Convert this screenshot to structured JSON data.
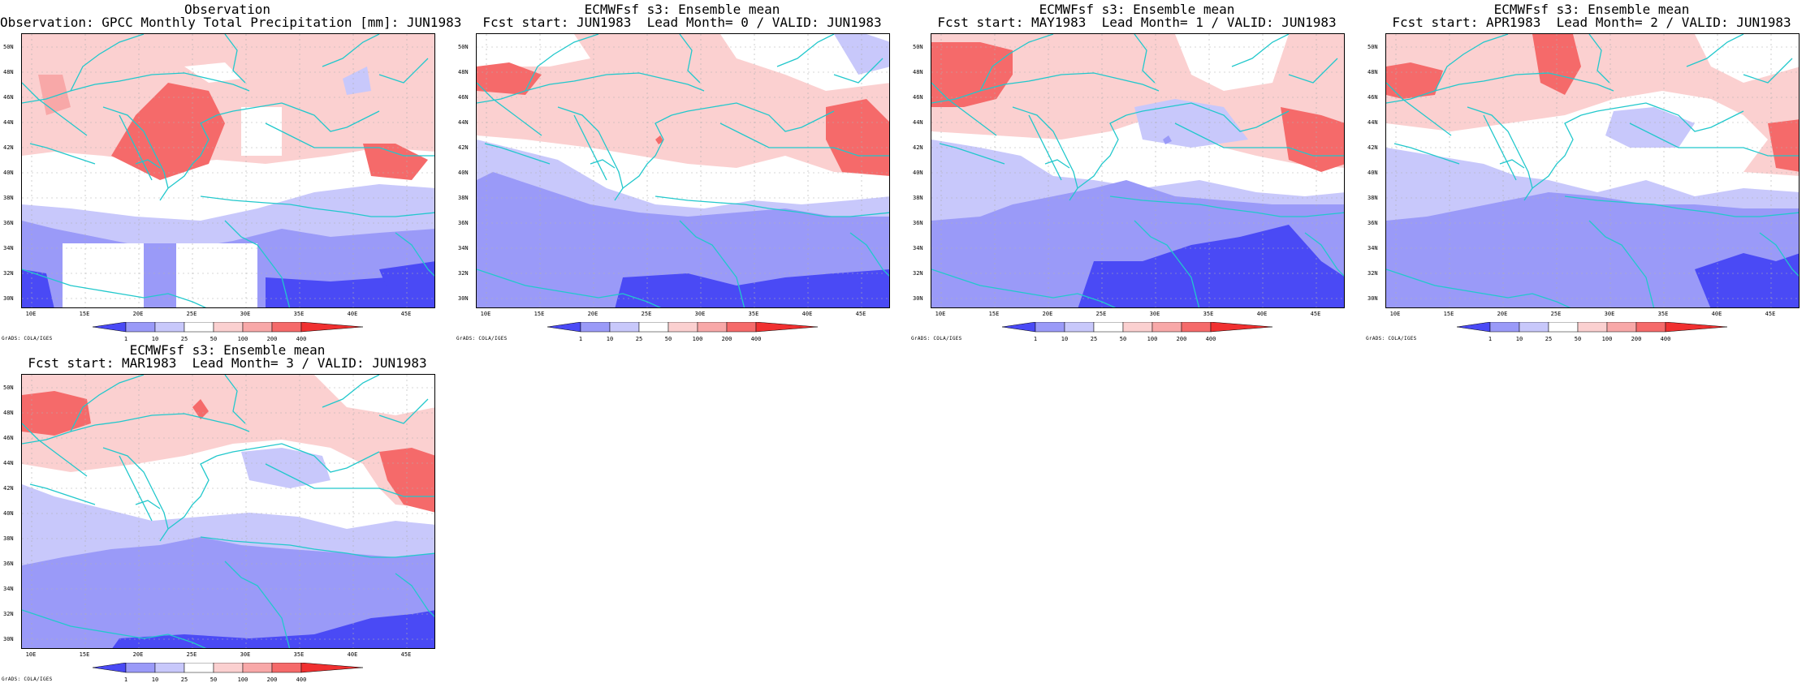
{
  "axis": {
    "lat_labels": [
      "50N",
      "48N",
      "46N",
      "44N",
      "42N",
      "40N",
      "38N",
      "36N",
      "34N",
      "32N",
      "30N"
    ],
    "lon_labels": [
      "10E",
      "15E",
      "20E",
      "25E",
      "30E",
      "35E",
      "40E",
      "45E"
    ]
  },
  "colorbar": {
    "levels": [
      "1",
      "10",
      "25",
      "50",
      "100",
      "200",
      "400"
    ],
    "colors": [
      "#4a4af5",
      "#9a9af8",
      "#c8c8fb",
      "#ffffff",
      "#fbd0d0",
      "#f8a8a8",
      "#f56a6a",
      "#f03030"
    ]
  },
  "credit": "GrADS: COLA/IGES",
  "coast_color": "#22c8cc",
  "panels": [
    {
      "id": "obs",
      "title1": "Observation",
      "title2": "Observation: GPCC Monthly Total Precipitation [mm]: JUN1983"
    },
    {
      "id": "lead0",
      "title1": "ECMWFsf s3: Ensemble mean",
      "title2": "Fcst start: JUN1983  Lead Month= 0 / VALID: JUN1983"
    },
    {
      "id": "lead1",
      "title1": "ECMWFsf s3: Ensemble mean",
      "title2": "Fcst start: MAY1983  Lead Month= 1 / VALID: JUN1983"
    },
    {
      "id": "lead2",
      "title1": "ECMWFsf s3: Ensemble mean",
      "title2": "Fcst start: APR1983  Lead Month= 2 / VALID: JUN1983"
    },
    {
      "id": "lead3",
      "title1": "ECMWFsf s3: Ensemble mean",
      "title2": "Fcst start: MAR1983  Lead Month= 3 / VALID: JUN1983"
    }
  ]
}
